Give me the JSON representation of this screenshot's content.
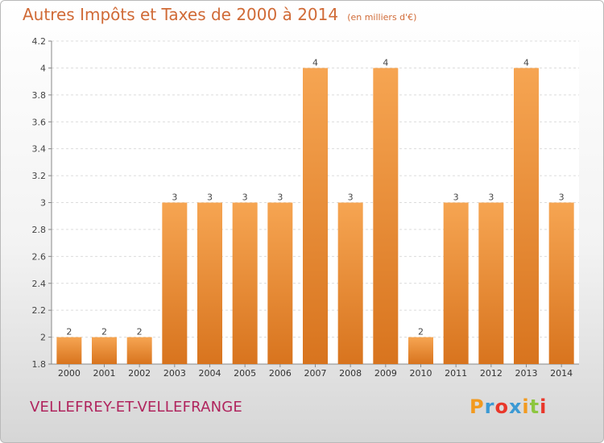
{
  "header": {
    "title": "Autres Impôts et Taxes de 2000 à 2014",
    "subtitle": "(en milliers d'€)"
  },
  "footer": {
    "commune": "VELLEFREY-ET-VELLEFRANGE",
    "logo_text": "Proxiti"
  },
  "colors": {
    "bar_top": "#f6a552",
    "bar_bottom": "#d8741e",
    "title": "#d06a36",
    "commune": "#b0245d",
    "logo_letters": [
      "#f29a1f",
      "#3c9ad4",
      "#e9372a",
      "#3c9ad4",
      "#f29a1f",
      "#8dc63f",
      "#e9372a"
    ]
  },
  "chart_data": {
    "type": "bar",
    "categories": [
      "2000",
      "2001",
      "2002",
      "2003",
      "2004",
      "2005",
      "2006",
      "2007",
      "2008",
      "2009",
      "2010",
      "2011",
      "2012",
      "2013",
      "2014"
    ],
    "values": [
      2,
      2,
      2,
      3,
      3,
      3,
      3,
      4,
      3,
      4,
      2,
      3,
      3,
      4,
      3
    ],
    "data_labels": [
      "2",
      "2",
      "2",
      "3",
      "3",
      "3",
      "3",
      "4",
      "3",
      "4",
      "2",
      "3",
      "3",
      "4",
      "3"
    ],
    "yticks": [
      1.8,
      2,
      2.2,
      2.4,
      2.6,
      2.8,
      3,
      3.2,
      3.4,
      3.6,
      3.8,
      4,
      4.2
    ],
    "ytick_labels": [
      "1.8",
      "2",
      "2.2",
      "2.4",
      "2.6",
      "2.8",
      "3",
      "3.2",
      "3.4",
      "3.6",
      "3.8",
      "4",
      "4.2"
    ],
    "ylim": [
      1.8,
      4.2
    ],
    "grid": true
  }
}
